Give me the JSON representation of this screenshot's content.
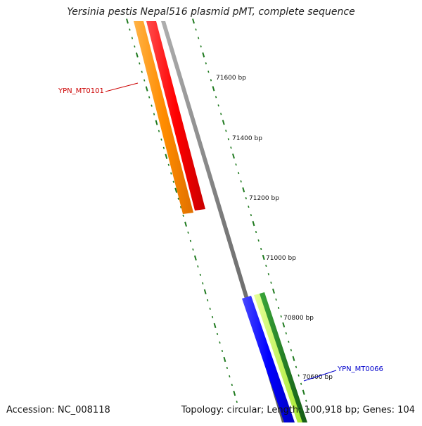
{
  "title": "Yersinia pestis Nepal516 plasmid pMT, complete sequence",
  "accession": "Accession: NC_008118",
  "summary": "Topology: circular; Length: 100,918 bp; Genes: 104",
  "ticks": [
    {
      "bp": 71600,
      "label": "71600 bp"
    },
    {
      "bp": 71400,
      "label": "71400 bp"
    },
    {
      "bp": 71200,
      "label": "71200 bp"
    },
    {
      "bp": 71000,
      "label": "71000 bp"
    },
    {
      "bp": 70800,
      "label": "70800 bp"
    },
    {
      "bp": 70600,
      "label": "70600 bp"
    }
  ],
  "genes": [
    {
      "id": "YPN_MT0101",
      "color": "#cc0000"
    },
    {
      "id": "YPN_MT0066",
      "color": "#0000cc"
    }
  ],
  "colors": {
    "cds_forward": "#ff0000",
    "gene_forward": "#ff8c00",
    "backbone": "#808080",
    "cds_reverse": "#0000ff",
    "gene_reverse_light": "#bfff3f",
    "gene_reverse_dark": "#1e7a1e",
    "ticks": "#1f7a1f"
  }
}
